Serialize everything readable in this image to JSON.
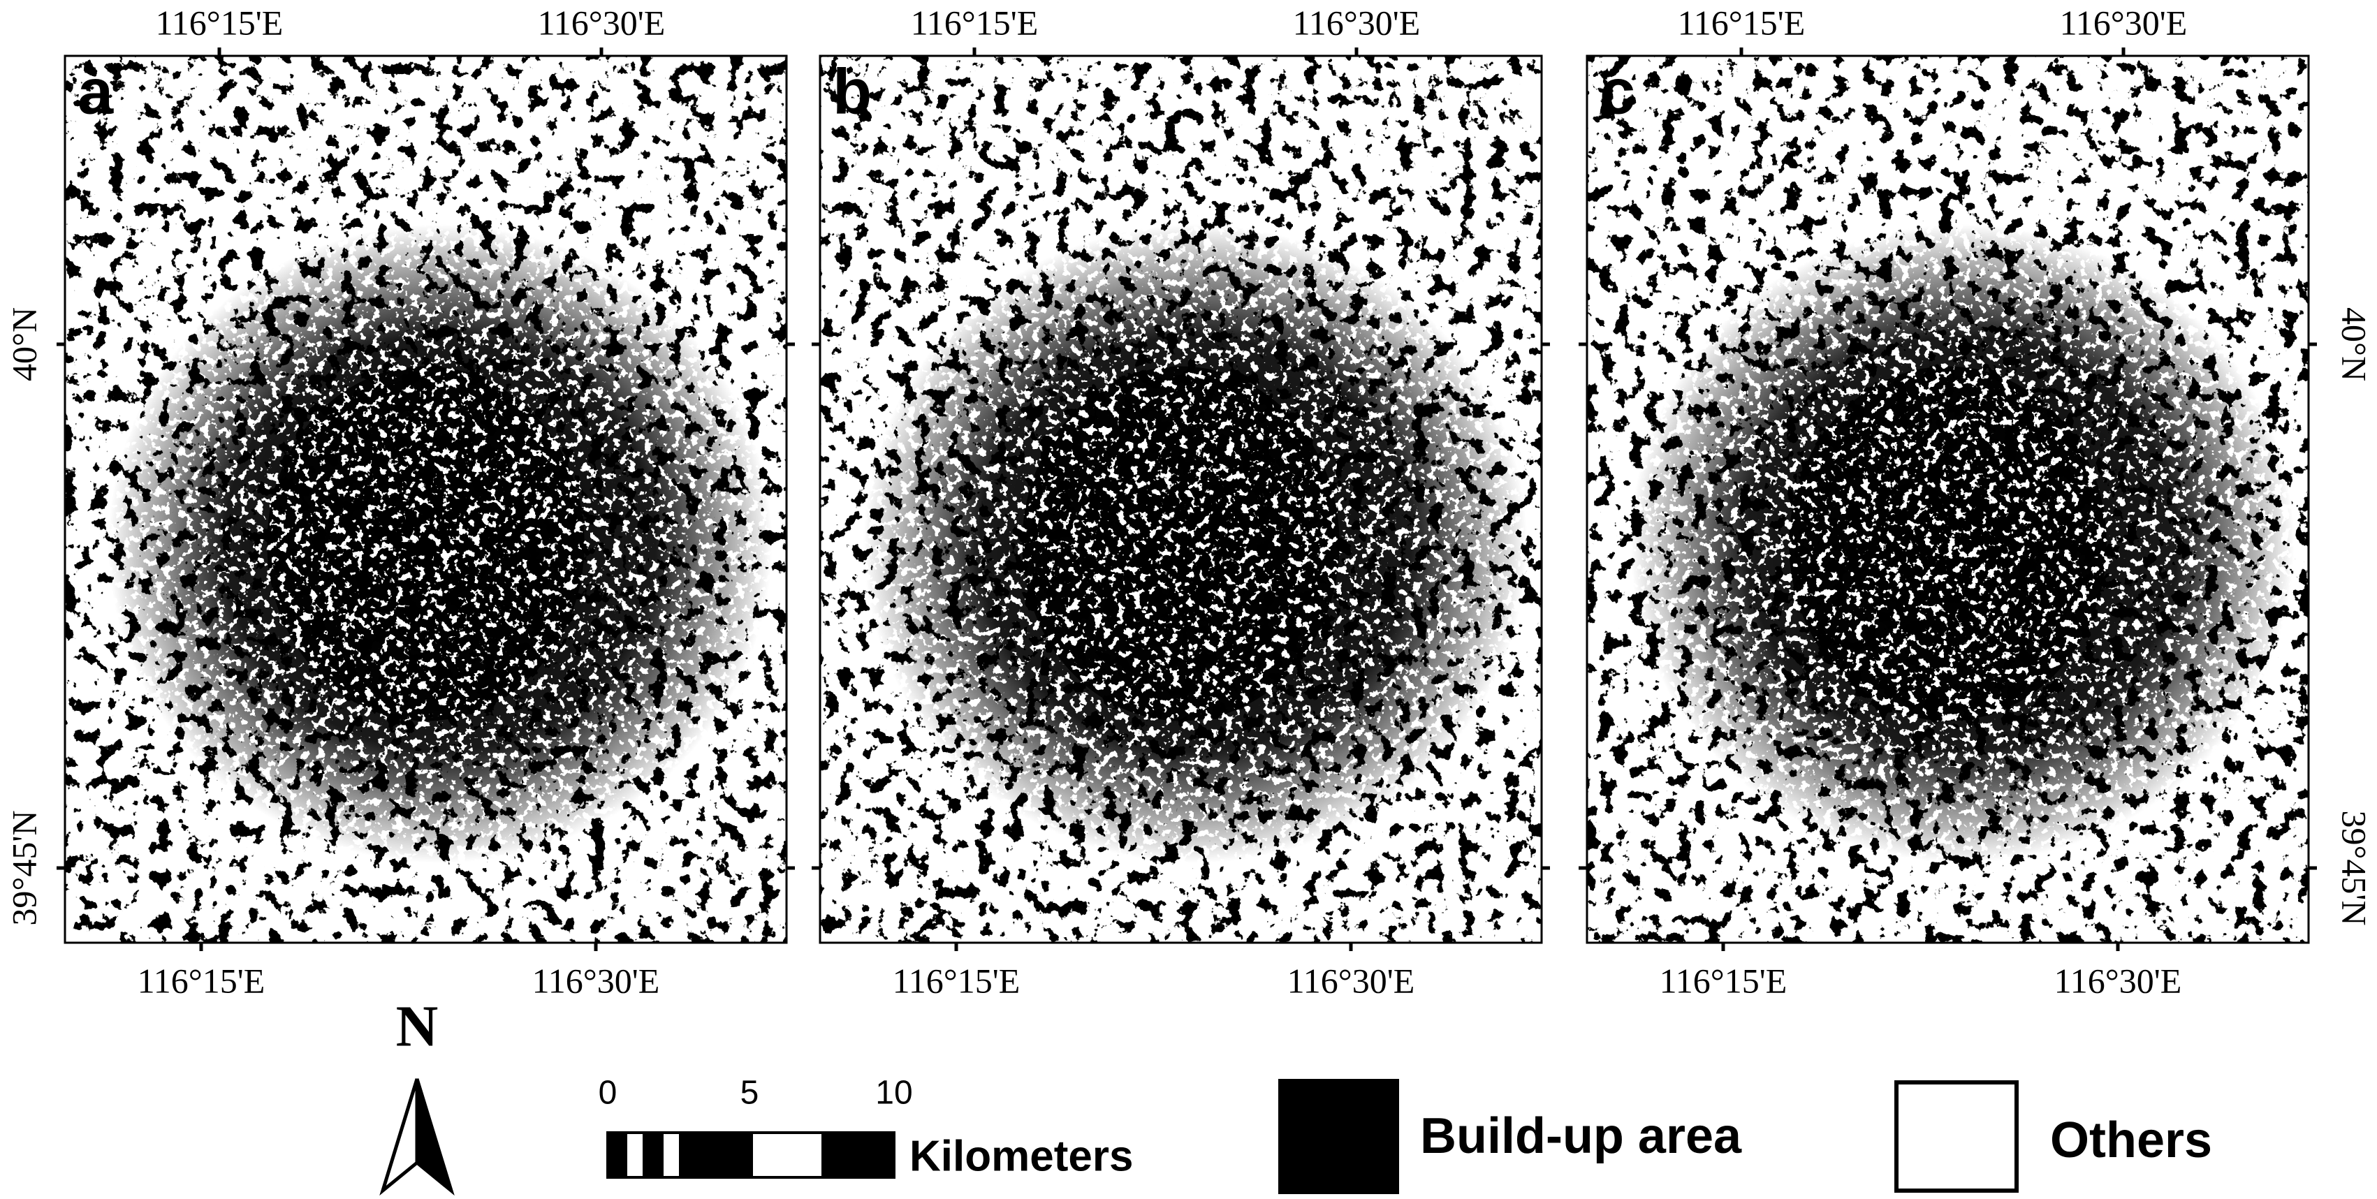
{
  "panels": [
    {
      "label": "a",
      "top_ticks": [
        "116°15'E",
        "116°30'E"
      ],
      "bottom_ticks": [
        "116°15'E",
        "116°30'E"
      ]
    },
    {
      "label": "b",
      "top_ticks": [
        "116°15'E",
        "116°30'E"
      ],
      "bottom_ticks": [
        "116°15'E",
        "116°30'E"
      ]
    },
    {
      "label": "c",
      "top_ticks": [
        "116°15'E",
        "116°30'E"
      ],
      "bottom_ticks": [
        "116°15'E",
        "116°30'E"
      ]
    }
  ],
  "left_ticks": [
    "40°N",
    "39°45'N"
  ],
  "right_ticks": [
    "40°N",
    "39°45'N"
  ],
  "north": "N",
  "scale_bar": {
    "labels": [
      "0",
      "5",
      "10"
    ],
    "unit": "Kilometers"
  },
  "legend": [
    {
      "label": "Build-up area"
    },
    {
      "label": "Others"
    }
  ]
}
